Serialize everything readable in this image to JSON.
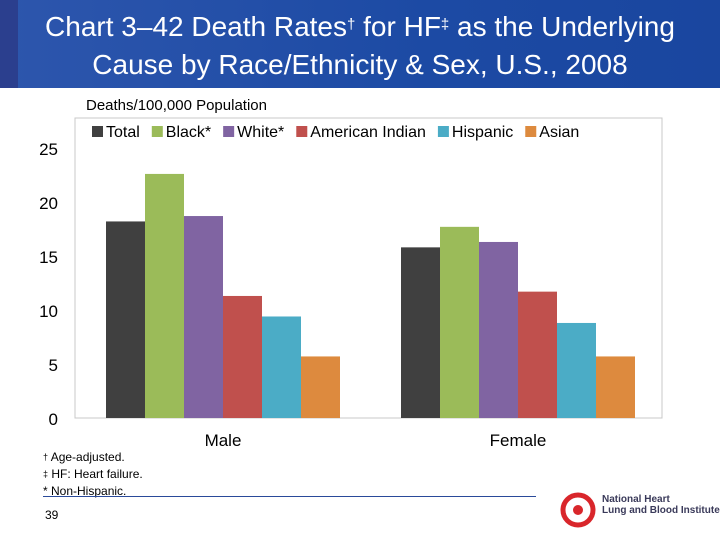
{
  "header": {
    "title_line1_pre": "Chart 3–42 Death Rates",
    "title_line1_sym1": "†",
    "title_line1_mid": " for HF",
    "title_line1_sym2": "‡",
    "title_line1_post": " as the Underlying",
    "title_line2": "Cause by Race/Ethnicity & Sex, U.S., 2008"
  },
  "chart_data": {
    "type": "bar",
    "ylabel": "Deaths/100,000 Population",
    "categories": [
      "Male",
      "Female"
    ],
    "ylim": [
      0,
      25
    ],
    "yticks": [
      0,
      5,
      10,
      15,
      20,
      25
    ],
    "legend_position": "top",
    "grid": false,
    "series": [
      {
        "name": "Total",
        "values": [
          18.2,
          15.8
        ],
        "color": "#404040"
      },
      {
        "name": "Black*",
        "values": [
          22.6,
          17.7
        ],
        "color": "#9bbb59"
      },
      {
        "name": "White*",
        "values": [
          18.7,
          16.3
        ],
        "color": "#8064a2"
      },
      {
        "name": "American Indian",
        "values": [
          11.3,
          11.7
        ],
        "color": "#c0504d"
      },
      {
        "name": "Hispanic",
        "values": [
          9.4,
          8.8
        ],
        "color": "#4bacc6"
      },
      {
        "name": "Asian",
        "values": [
          5.7,
          5.7
        ],
        "color": "#dd8a3e"
      }
    ]
  },
  "footnotes": [
    {
      "symbol": "†",
      "text": " Age-adjusted."
    },
    {
      "symbol": "‡",
      "text": " HF: Heart failure."
    },
    {
      "symbol": "",
      "text": "* Non-Hispanic."
    }
  ],
  "page_number": "39",
  "logo": {
    "line1": "National Heart",
    "line2": "Lung and Blood Institute",
    "color": "#d9262b"
  }
}
